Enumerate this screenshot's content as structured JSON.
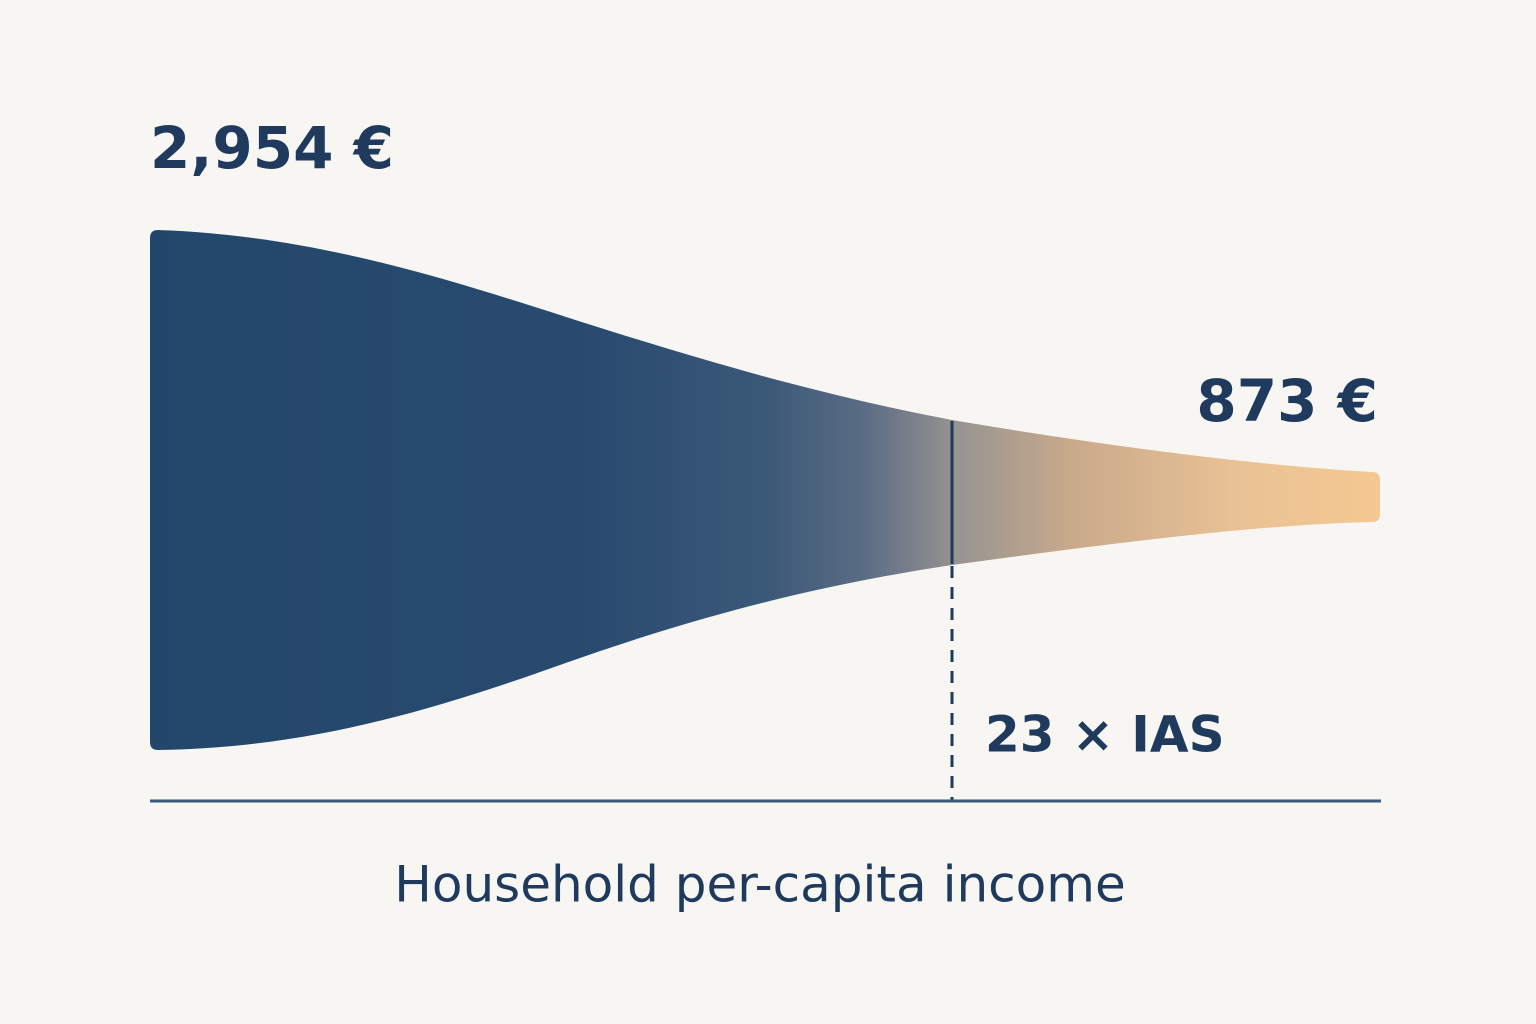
{
  "labels": {
    "max_income": "2,954 €",
    "min_income": "873 €",
    "threshold": "23 × IAS"
  },
  "axis_label": "Household per-capita income"
}
